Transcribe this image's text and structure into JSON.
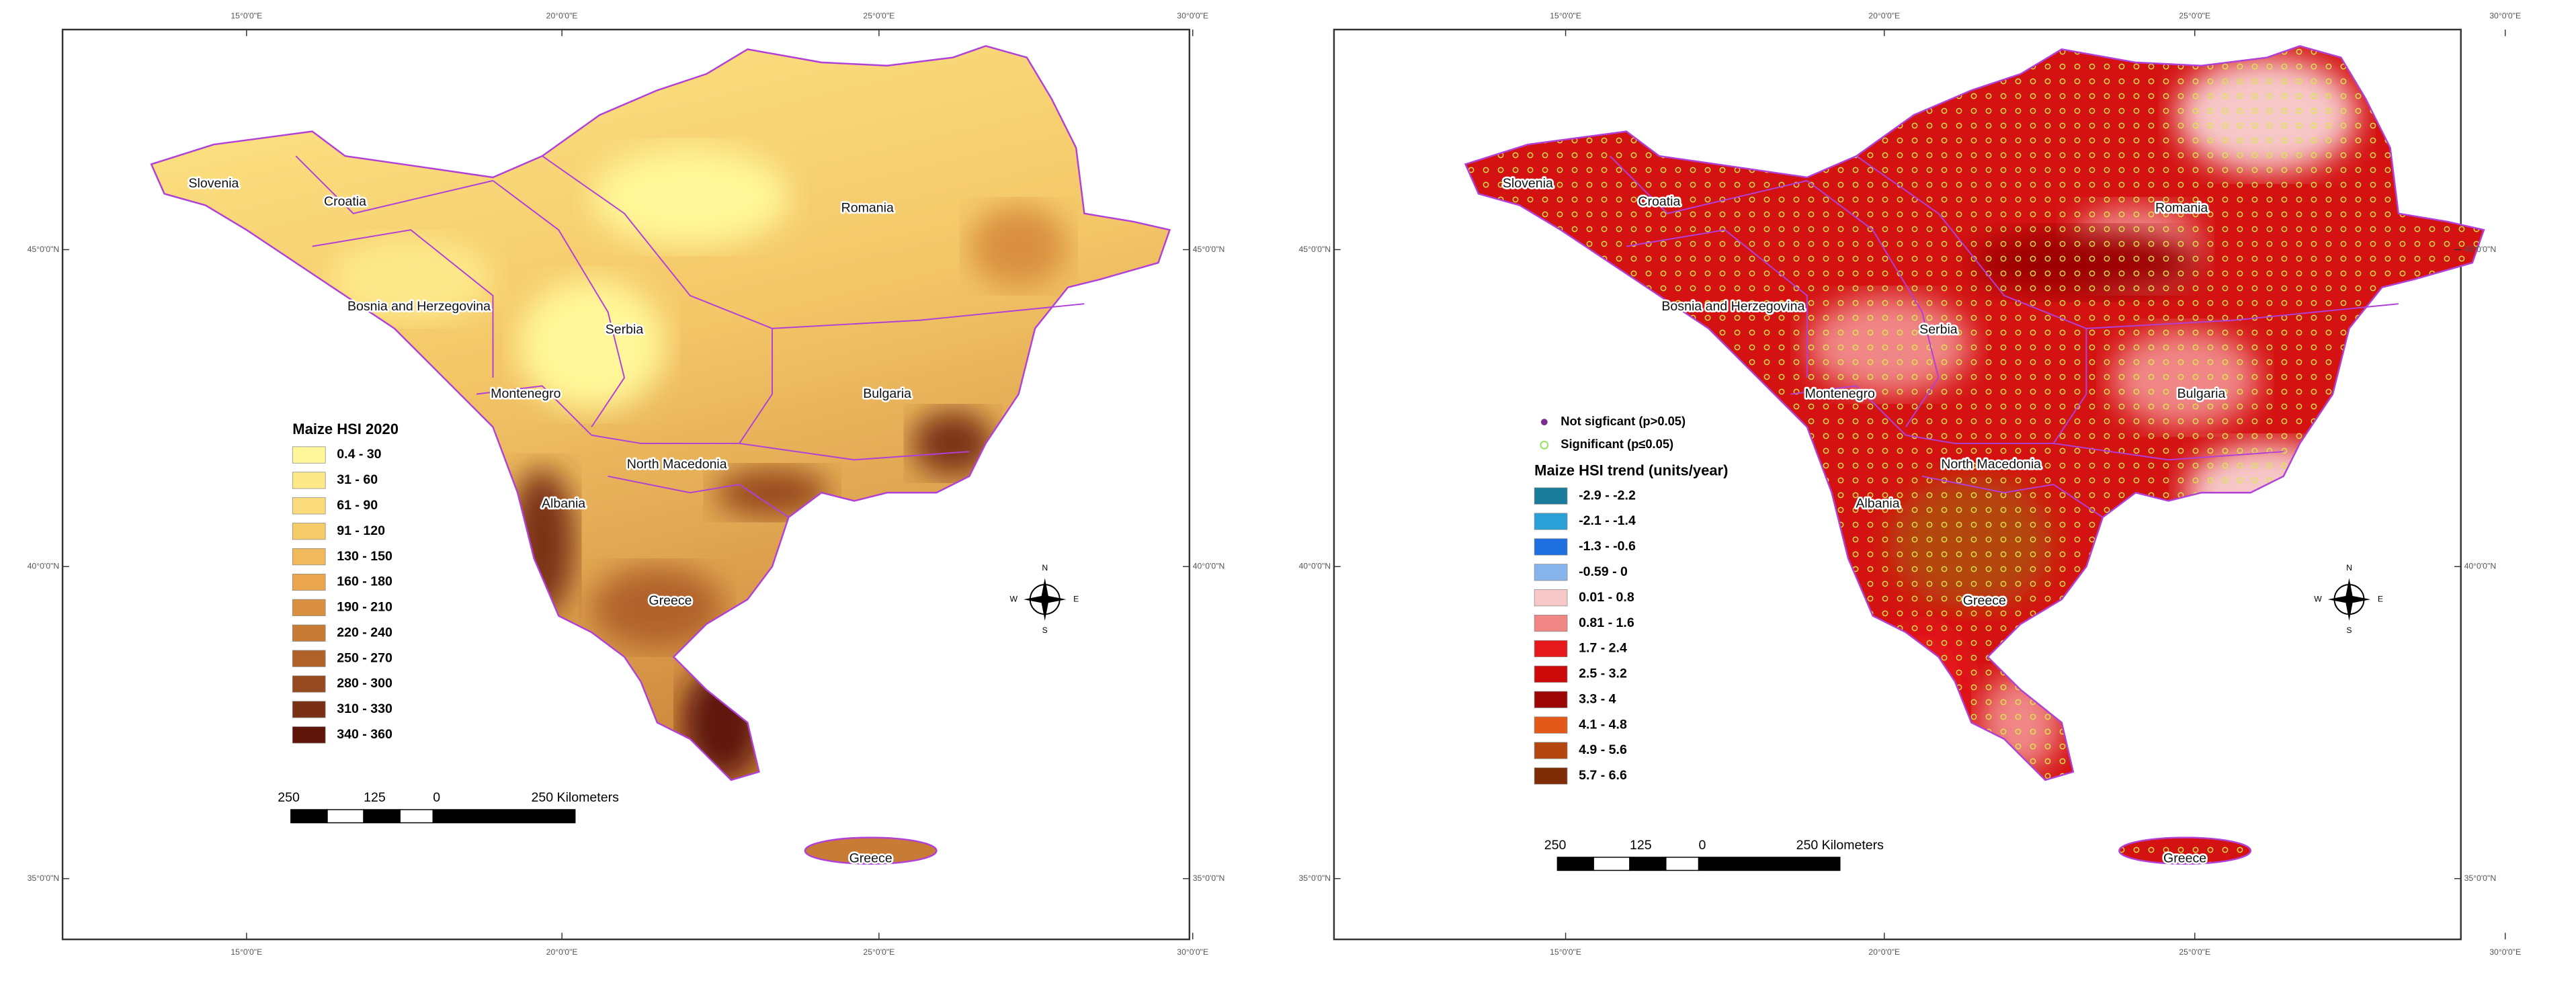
{
  "panels": [
    {
      "legend": {
        "title": "Maize HSI 2020",
        "items": [
          {
            "label": "0.4 - 30",
            "color": "#fff799"
          },
          {
            "label": "31 - 60",
            "color": "#fde98a"
          },
          {
            "label": "61 - 90",
            "color": "#fadc7c"
          },
          {
            "label": "91 - 120",
            "color": "#f6cc6b"
          },
          {
            "label": "130 - 150",
            "color": "#f0b95c"
          },
          {
            "label": "160 - 180",
            "color": "#e9a64f"
          },
          {
            "label": "190 - 210",
            "color": "#d99040"
          },
          {
            "label": "220 - 240",
            "color": "#c77b35"
          },
          {
            "label": "250 - 270",
            "color": "#b0622a"
          },
          {
            "label": "280 - 300",
            "color": "#964a1f"
          },
          {
            "label": "310 - 330",
            "color": "#7a3014"
          },
          {
            "label": "340 - 360",
            "color": "#5e1408"
          }
        ]
      },
      "countries": [
        "Slovenia",
        "Croatia",
        "Bosnia and Herzegovina",
        "Serbia",
        "Montenegro",
        "Romania",
        "Bulgaria",
        "North Macedonia",
        "Albania",
        "Greece",
        "Greece"
      ],
      "scale_bar": [
        "250",
        "125",
        "0",
        "250 Kilometers"
      ]
    },
    {
      "significance": [
        {
          "label": "Not sigficant (p>0.05)",
          "color": "#7b2d8e"
        },
        {
          "label": "Significant (p≤0.05)",
          "color": "#9be36b"
        }
      ],
      "legend": {
        "title": "Maize HSI trend (units/year)",
        "items": [
          {
            "label": "-2.9 - -2.2",
            "color": "#1a7b9a"
          },
          {
            "label": "-2.1 - -1.4",
            "color": "#2aa0d6"
          },
          {
            "label": "-1.3 - -0.6",
            "color": "#1f6fe0"
          },
          {
            "label": "-0.59 - 0",
            "color": "#88b4ec"
          },
          {
            "label": "0.01 - 0.8",
            "color": "#f7c8c8"
          },
          {
            "label": "0.81 - 1.6",
            "color": "#f08686"
          },
          {
            "label": "1.7 - 2.4",
            "color": "#e6191a"
          },
          {
            "label": "2.5 - 3.2",
            "color": "#cc0a0a"
          },
          {
            "label": "3.3 - 4",
            "color": "#9c0606"
          },
          {
            "label": "4.1 - 4.8",
            "color": "#e2591a"
          },
          {
            "label": "4.9 - 5.6",
            "color": "#b4470f"
          },
          {
            "label": "5.7 - 6.6",
            "color": "#7e2d07"
          }
        ]
      },
      "countries": [
        "Slovenia",
        "Croatia",
        "Bosnia and Herzegovina",
        "Serbia",
        "Montenegro",
        "Romania",
        "Bulgaria",
        "North Macedonia",
        "Albania",
        "Greece",
        "Greece"
      ],
      "scale_bar": [
        "250",
        "125",
        "0",
        "250 Kilometers"
      ]
    }
  ],
  "graticule": {
    "longitude": [
      "15°0'0\"E",
      "20°0'0\"E",
      "25°0'0\"E",
      "30°0'0\"E"
    ],
    "latitude": [
      "45°0'0\"N",
      "40°0'0\"N",
      "35°0'0\"N"
    ]
  },
  "north_arrow": [
    "N",
    "E",
    "S",
    "W"
  ]
}
